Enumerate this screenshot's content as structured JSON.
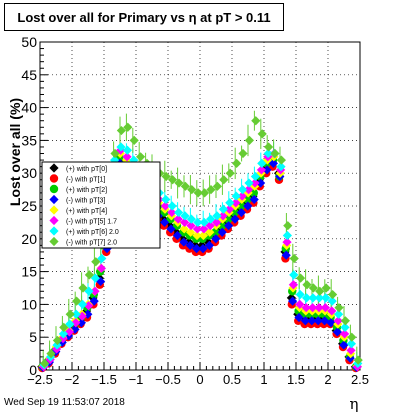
{
  "title": "Lost over all for Primary vs    η at pT > 0.11",
  "timestamp": "Wed Sep 19 11:53:07 2018",
  "chart_data": {
    "type": "scatter",
    "xlabel": "η",
    "ylabel": "Lost over all (%)",
    "xlim": [
      -2.5,
      2.5
    ],
    "ylim": [
      0,
      50
    ],
    "xticks": [
      "−2.5",
      "−2",
      "−1.5",
      "−1",
      "−0.5",
      "0",
      "0.5",
      "1",
      "1.5",
      "2",
      "2.5"
    ],
    "yticks": [
      "0",
      "5",
      "10",
      "15",
      "20",
      "25",
      "30",
      "35",
      "40",
      "45",
      "50"
    ],
    "grid": true,
    "legend_position": "left-middle",
    "x": [
      -2.45,
      -2.35,
      -2.25,
      -2.15,
      -2.05,
      -1.95,
      -1.85,
      -1.75,
      -1.65,
      -1.55,
      -1.45,
      -1.35,
      -1.25,
      -1.15,
      -1.05,
      -0.95,
      -0.85,
      -0.75,
      -0.65,
      -0.55,
      -0.45,
      -0.35,
      -0.25,
      -0.15,
      -0.05,
      0.05,
      0.15,
      0.25,
      0.35,
      0.45,
      0.55,
      0.65,
      0.75,
      0.85,
      0.95,
      1.05,
      1.15,
      1.25,
      1.35,
      1.45,
      1.55,
      1.65,
      1.75,
      1.85,
      1.95,
      2.05,
      2.15,
      2.25,
      2.35,
      2.45
    ],
    "series": [
      {
        "name": "(+) with pT[0]",
        "color": "#000000",
        "marker": "diamond",
        "y": [
          0.5,
          1.5,
          3.0,
          4.5,
          5.5,
          6.5,
          7.5,
          9.0,
          11.0,
          14.0,
          19.0,
          29.0,
          32.0,
          31.0,
          29.0,
          27.5,
          26.0,
          25.0,
          24.0,
          23.0,
          22.0,
          21.0,
          20.0,
          19.5,
          19.0,
          19.0,
          19.5,
          20.5,
          21.5,
          22.5,
          23.5,
          24.5,
          25.5,
          26.5,
          29.0,
          31.0,
          32.0,
          30.0,
          18.0,
          11.0,
          8.5,
          8.0,
          8.0,
          8.0,
          8.0,
          7.5,
          6.0,
          4.0,
          2.0,
          0.5
        ]
      },
      {
        "name": "(-) with pT[1]",
        "color": "#ff0000",
        "marker": "circle",
        "y": [
          0.3,
          1.0,
          2.5,
          4.0,
          5.0,
          6.0,
          7.0,
          8.0,
          10.0,
          13.0,
          18.0,
          28.0,
          31.0,
          30.0,
          28.0,
          26.5,
          25.0,
          24.0,
          23.0,
          22.0,
          21.0,
          20.0,
          19.0,
          18.5,
          18.0,
          18.0,
          18.5,
          19.5,
          20.5,
          21.5,
          22.5,
          23.5,
          24.5,
          25.5,
          28.0,
          30.0,
          31.0,
          29.0,
          17.0,
          10.0,
          7.5,
          7.0,
          7.0,
          7.0,
          7.0,
          7.0,
          5.5,
          3.5,
          1.5,
          0.3
        ]
      },
      {
        "name": "(+) with pT[2]",
        "color": "#00cc00",
        "marker": "circle",
        "y": [
          0.5,
          1.5,
          3.0,
          4.5,
          5.5,
          7.0,
          8.0,
          9.5,
          11.5,
          15.0,
          20.0,
          29.5,
          32.5,
          31.5,
          30.0,
          28.5,
          27.0,
          26.0,
          25.0,
          24.0,
          23.0,
          22.0,
          21.0,
          20.5,
          20.0,
          20.0,
          20.5,
          21.0,
          22.0,
          23.0,
          24.0,
          25.0,
          26.0,
          27.0,
          29.5,
          31.5,
          32.0,
          29.5,
          18.5,
          12.0,
          9.0,
          8.5,
          8.5,
          8.5,
          8.5,
          8.0,
          6.5,
          4.5,
          2.0,
          0.5
        ]
      },
      {
        "name": "(-) with pT[3]",
        "color": "#0000ff",
        "marker": "diamond",
        "y": [
          0.4,
          1.2,
          2.8,
          4.2,
          5.2,
          6.2,
          7.2,
          8.5,
          10.5,
          13.5,
          18.5,
          28.5,
          31.5,
          30.5,
          28.5,
          27.0,
          25.5,
          24.5,
          23.5,
          22.5,
          21.5,
          20.5,
          19.5,
          19.0,
          18.5,
          18.5,
          19.0,
          20.0,
          21.0,
          22.0,
          23.0,
          24.0,
          25.0,
          26.0,
          28.5,
          30.5,
          31.5,
          29.5,
          17.5,
          10.5,
          8.0,
          7.5,
          7.5,
          7.5,
          7.5,
          7.2,
          5.8,
          3.8,
          1.8,
          0.4
        ]
      },
      {
        "name": "(+) with pT[4]",
        "color": "#ffff00",
        "marker": "diamond",
        "y": [
          0.6,
          1.8,
          3.5,
          5.0,
          6.0,
          7.5,
          8.5,
          10.0,
          12.0,
          15.5,
          20.5,
          30.0,
          33.0,
          32.0,
          30.5,
          29.0,
          27.5,
          26.5,
          25.5,
          24.5,
          23.5,
          22.5,
          21.5,
          21.0,
          20.5,
          20.5,
          21.0,
          22.0,
          23.0,
          24.0,
          25.0,
          26.0,
          27.0,
          28.0,
          30.0,
          32.0,
          32.5,
          30.0,
          19.0,
          12.5,
          9.5,
          9.0,
          9.0,
          9.0,
          9.0,
          8.5,
          7.0,
          5.0,
          2.5,
          0.6
        ]
      },
      {
        "name": "(-) with pT[5] 1.7",
        "color": "#ff00ff",
        "marker": "diamond",
        "y": [
          0.5,
          1.6,
          3.2,
          4.8,
          5.8,
          7.2,
          8.2,
          9.8,
          12.0,
          15.5,
          20.5,
          30.5,
          33.5,
          32.5,
          31.0,
          29.5,
          28.0,
          27.0,
          26.0,
          25.0,
          24.0,
          23.0,
          22.5,
          22.0,
          21.5,
          21.5,
          22.0,
          22.5,
          23.5,
          24.5,
          25.5,
          26.5,
          27.5,
          28.5,
          30.5,
          32.5,
          33.0,
          30.5,
          19.5,
          13.0,
          10.0,
          9.5,
          9.5,
          9.5,
          9.5,
          9.0,
          7.5,
          5.5,
          3.0,
          0.5
        ]
      },
      {
        "name": "(+) with pT[6] 2.0",
        "color": "#00ffff",
        "marker": "diamond",
        "y": [
          0.8,
          2.0,
          3.8,
          5.5,
          7.0,
          8.5,
          10.0,
          12.0,
          14.0,
          17.0,
          22.0,
          32.0,
          34.0,
          33.5,
          32.0,
          30.5,
          29.0,
          28.0,
          27.0,
          26.0,
          25.0,
          24.0,
          23.5,
          23.0,
          22.5,
          22.5,
          23.0,
          23.5,
          24.5,
          25.5,
          26.5,
          27.5,
          28.5,
          29.5,
          31.5,
          33.0,
          33.0,
          31.0,
          20.5,
          14.5,
          11.5,
          11.0,
          11.0,
          11.0,
          11.0,
          10.5,
          8.5,
          6.5,
          4.0,
          1.0
        ]
      },
      {
        "name": "(-) with pT[7] 2.0",
        "color": "#66cc33",
        "marker": "diamond",
        "y": [
          1.0,
          2.5,
          4.5,
          6.5,
          8.5,
          10.5,
          12.5,
          14.5,
          16.5,
          19.0,
          24.0,
          33.0,
          36.5,
          37.0,
          35.0,
          32.5,
          31.5,
          30.5,
          30.0,
          29.5,
          29.0,
          28.5,
          28.0,
          27.5,
          27.0,
          27.0,
          27.5,
          28.0,
          29.0,
          30.0,
          31.5,
          33.0,
          35.0,
          38.0,
          36.0,
          34.0,
          33.0,
          32.0,
          22.0,
          17.0,
          14.0,
          13.0,
          12.5,
          12.0,
          12.5,
          11.5,
          9.5,
          7.5,
          5.0,
          1.5
        ]
      }
    ]
  }
}
